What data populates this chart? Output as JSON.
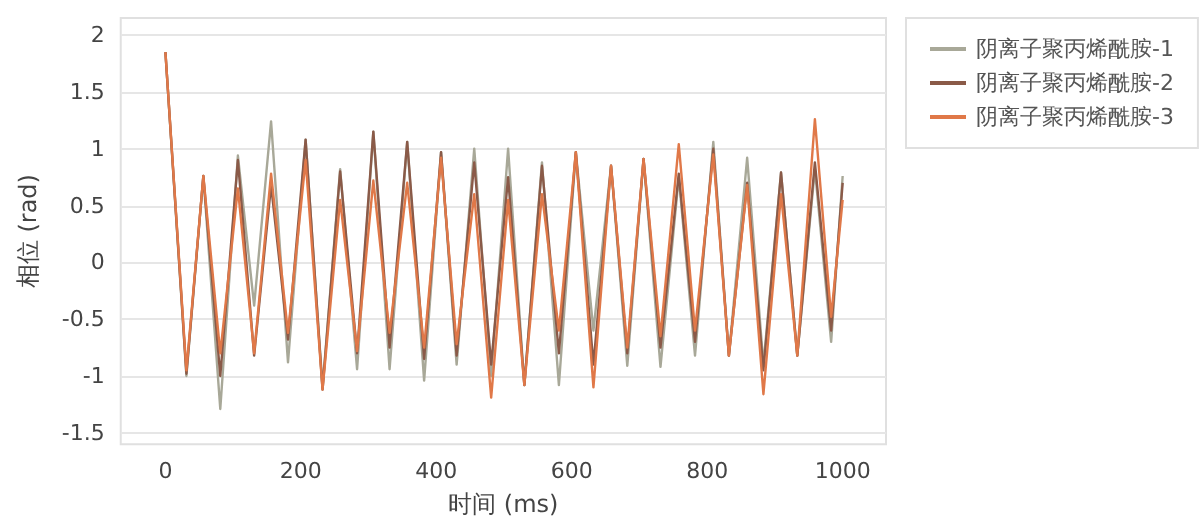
{
  "chart_data": {
    "type": "line",
    "xlabel": "时间 (ms)",
    "ylabel": "相位 (rad)",
    "x": [
      0,
      31,
      56,
      81,
      107,
      131,
      156,
      181,
      207,
      232,
      258,
      283,
      307,
      331,
      357,
      382,
      407,
      430,
      456,
      481,
      506,
      530,
      556,
      581,
      606,
      632,
      658,
      682,
      706,
      731,
      758,
      782,
      809,
      832,
      859,
      883,
      909,
      933,
      959,
      983,
      1000
    ],
    "series": [
      {
        "name": "阴离子聚丙烯酰胺-1",
        "color": "#a8a898",
        "values": [
          1.85,
          -1.0,
          0.76,
          -1.29,
          0.94,
          -0.38,
          1.24,
          -0.88,
          1.08,
          -1.1,
          0.82,
          -0.94,
          1.15,
          -0.94,
          1.06,
          -1.04,
          0.97,
          -0.9,
          1.0,
          -1.0,
          1.0,
          -1.08,
          0.88,
          -1.08,
          0.97,
          -0.6,
          0.85,
          -0.91,
          0.91,
          -0.92,
          0.75,
          -0.82,
          1.06,
          -0.82,
          0.92,
          -0.9,
          0.79,
          -0.82,
          0.82,
          -0.7,
          0.76
        ]
      },
      {
        "name": "阴离子聚丙烯酰胺-2",
        "color": "#8a5a48",
        "values": [
          1.85,
          -0.98,
          0.76,
          -1.0,
          0.9,
          -0.82,
          0.68,
          -0.68,
          1.08,
          -1.12,
          0.8,
          -0.8,
          1.15,
          -0.75,
          1.06,
          -0.85,
          0.97,
          -0.82,
          0.88,
          -0.9,
          0.75,
          -1.08,
          0.85,
          -0.8,
          0.97,
          -0.9,
          0.85,
          -0.8,
          0.91,
          -0.75,
          0.78,
          -0.7,
          1.0,
          -0.82,
          0.7,
          -0.95,
          0.79,
          -0.82,
          0.88,
          -0.6,
          0.7
        ]
      },
      {
        "name": "阴离子聚丙烯酰胺-3",
        "color": "#e07848",
        "values": [
          1.85,
          -0.95,
          0.76,
          -0.8,
          0.65,
          -0.8,
          0.78,
          -0.62,
          0.9,
          -1.12,
          0.55,
          -0.78,
          0.72,
          -0.62,
          0.7,
          -0.75,
          0.92,
          -0.72,
          0.6,
          -1.19,
          0.55,
          -1.08,
          0.6,
          -0.6,
          0.97,
          -1.1,
          0.85,
          -0.75,
          0.91,
          -0.65,
          1.04,
          -0.6,
          0.95,
          -0.82,
          0.68,
          -1.16,
          0.6,
          -0.82,
          1.26,
          -0.48,
          0.55
        ]
      }
    ],
    "xlim": [
      -66,
      1064
    ],
    "xticks": [
      0,
      200,
      400,
      600,
      800,
      1000
    ],
    "ylim": [
      -1.6,
      2.15
    ],
    "yticks": [
      -1.5,
      -1,
      -0.5,
      0,
      0.5,
      1,
      1.5,
      2
    ],
    "grid": "y",
    "legend": "top right",
    "marker": "none",
    "line_style": "solid"
  }
}
